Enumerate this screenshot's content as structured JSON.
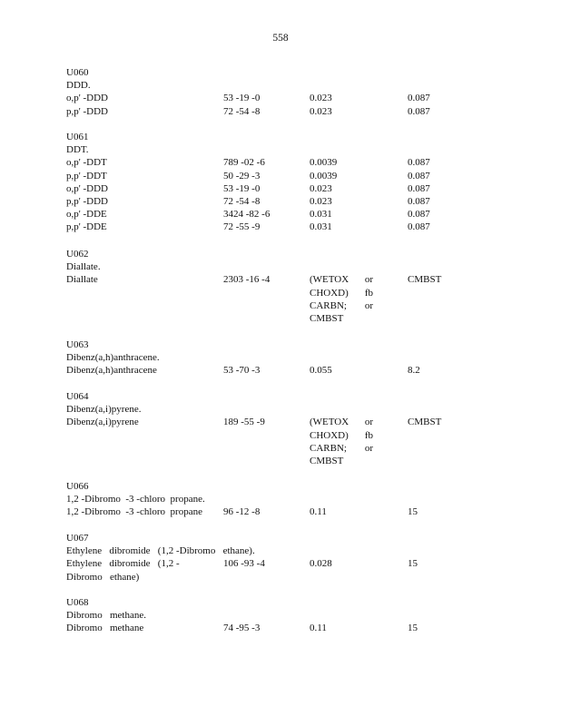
{
  "page_number": "558",
  "sections": [
    {
      "code": "U060",
      "title": "DDD.",
      "rows": [
        {
          "name": [
            "o,p' -DDD"
          ],
          "cas": "53 -19 -0",
          "col3": [
            "0.023"
          ],
          "col4": "0.087"
        },
        {
          "name": [
            "p,p' -DDD"
          ],
          "cas": "72 -54 -8",
          "col3": [
            "0.023"
          ],
          "col4": "0.087"
        }
      ]
    },
    {
      "code": "U061",
      "title": "DDT.",
      "rows": [
        {
          "name": [
            "o,p' -DDT"
          ],
          "cas": "789 -02 -6",
          "col3": [
            "0.0039"
          ],
          "col4": "0.087"
        },
        {
          "name": [
            "p,p' -DDT"
          ],
          "cas": "50 -29 -3",
          "col3": [
            "0.0039"
          ],
          "col4": "0.087"
        },
        {
          "name": [
            "o,p' -DDD"
          ],
          "cas": "53 -19 -0",
          "col3": [
            "0.023"
          ],
          "col4": "0.087"
        },
        {
          "name": [
            "p,p' -DDD"
          ],
          "cas": "72 -54 -8",
          "col3": [
            "0.023"
          ],
          "col4": "0.087"
        },
        {
          "name": [
            "o,p' -DDE"
          ],
          "cas": "3424 -82 -6",
          "col3": [
            "0.031"
          ],
          "col4": "0.087"
        },
        {
          "name": [
            "p,p' -DDE"
          ],
          "cas": "72 -55 -9",
          "col3": [
            "0.031"
          ],
          "col4": "0.087"
        }
      ]
    },
    {
      "code": "U062",
      "title": "Diallate.",
      "rows": [
        {
          "name": [
            "Diallate"
          ],
          "cas": "2303 -16 -4",
          "col3": [
            "(WETOX|or",
            "CHOXD)|fb",
            "CARBN;|or",
            "CMBST"
          ],
          "col4": "CMBST"
        }
      ]
    },
    {
      "code": "U063",
      "title": "Dibenz(a,h)anthracene.",
      "rows": [
        {
          "name": [
            "Dibenz(a,h)anthracene"
          ],
          "cas": "53 -70 -3",
          "col3": [
            "0.055"
          ],
          "col4": "8.2"
        }
      ]
    },
    {
      "code": "U064",
      "title": "Dibenz(a,i)pyrene.",
      "rows": [
        {
          "name": [
            "Dibenz(a,i)pyrene"
          ],
          "cas": "189 -55 -9",
          "col3": [
            "(WETOX|or",
            "CHOXD)|fb",
            "CARBN;|or",
            "CMBST"
          ],
          "col4": "CMBST"
        }
      ]
    },
    {
      "code": "U066",
      "title": "1,2 -Dibromo  -3 -chloro  propane.",
      "rows": [
        {
          "name": [
            "1,2 -Dibromo  -3 -chloro  propane"
          ],
          "cas": "96 -12 -8",
          "col3": [
            "0.11"
          ],
          "col4": "15"
        }
      ]
    },
    {
      "code": "U067",
      "title": "Ethylene   dibromide   (1,2 -Dibromo   ethane).",
      "rows": [
        {
          "name": [
            "Ethylene   dibromide   (1,2 -",
            "Dibromo   ethane)"
          ],
          "cas": "106 -93 -4",
          "col3": [
            "0.028"
          ],
          "col4": "15"
        }
      ]
    },
    {
      "code": "U068",
      "title": "Dibromo   methane.",
      "rows": [
        {
          "name": [
            "Dibromo   methane"
          ],
          "cas": "74 -95 -3",
          "col3": [
            "0.11"
          ],
          "col4": "15"
        }
      ]
    }
  ]
}
